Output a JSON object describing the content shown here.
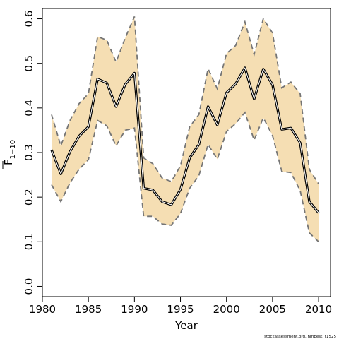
{
  "chart_data": {
    "type": "line",
    "title": "",
    "xlabel": "Year",
    "ylabel_main": "F",
    "ylabel_sub": "1−10",
    "xlim": [
      1981,
      2010
    ],
    "ylim": [
      0,
      0.6
    ],
    "x_ticks": [
      1980,
      1985,
      1990,
      1995,
      2000,
      2005,
      2010
    ],
    "y_ticks": [
      0.0,
      0.1,
      0.2,
      0.3,
      0.4,
      0.5,
      0.6
    ],
    "y_tick_labels": [
      "0.0",
      "0.1",
      "0.2",
      "0.3",
      "0.4",
      "0.5",
      "0.6"
    ],
    "grid": false,
    "x": [
      1981,
      1982,
      1983,
      1984,
      1985,
      1986,
      1987,
      1988,
      1989,
      1990,
      1991,
      1992,
      1993,
      1994,
      1995,
      1996,
      1997,
      1998,
      1999,
      2000,
      2001,
      2002,
      2003,
      2004,
      2005,
      2006,
      2007,
      2008,
      2009,
      2010
    ],
    "series": [
      {
        "role": "estimate",
        "values": [
          0.306,
          0.252,
          0.302,
          0.337,
          0.358,
          0.465,
          0.456,
          0.403,
          0.453,
          0.478,
          0.22,
          0.216,
          0.19,
          0.183,
          0.217,
          0.288,
          0.318,
          0.403,
          0.362,
          0.434,
          0.454,
          0.49,
          0.42,
          0.487,
          0.452,
          0.352,
          0.355,
          0.322,
          0.19,
          0.165
        ]
      },
      {
        "role": "upper",
        "values": [
          0.385,
          0.315,
          0.372,
          0.41,
          0.432,
          0.56,
          0.552,
          0.503,
          0.557,
          0.605,
          0.288,
          0.275,
          0.243,
          0.235,
          0.27,
          0.358,
          0.385,
          0.488,
          0.443,
          0.522,
          0.54,
          0.593,
          0.52,
          0.6,
          0.568,
          0.445,
          0.458,
          0.432,
          0.262,
          0.23
        ]
      },
      {
        "role": "lower",
        "values": [
          0.228,
          0.19,
          0.232,
          0.263,
          0.284,
          0.372,
          0.36,
          0.315,
          0.35,
          0.355,
          0.157,
          0.157,
          0.14,
          0.137,
          0.163,
          0.22,
          0.248,
          0.318,
          0.285,
          0.347,
          0.365,
          0.39,
          0.328,
          0.378,
          0.338,
          0.258,
          0.255,
          0.215,
          0.12,
          0.1
        ]
      }
    ],
    "colors": {
      "band": "#f5deb3",
      "estimate": "#000000",
      "bounds": "#757575",
      "frame": "#000000"
    }
  },
  "credit": "stockassessment.org, hmbest, r1525"
}
